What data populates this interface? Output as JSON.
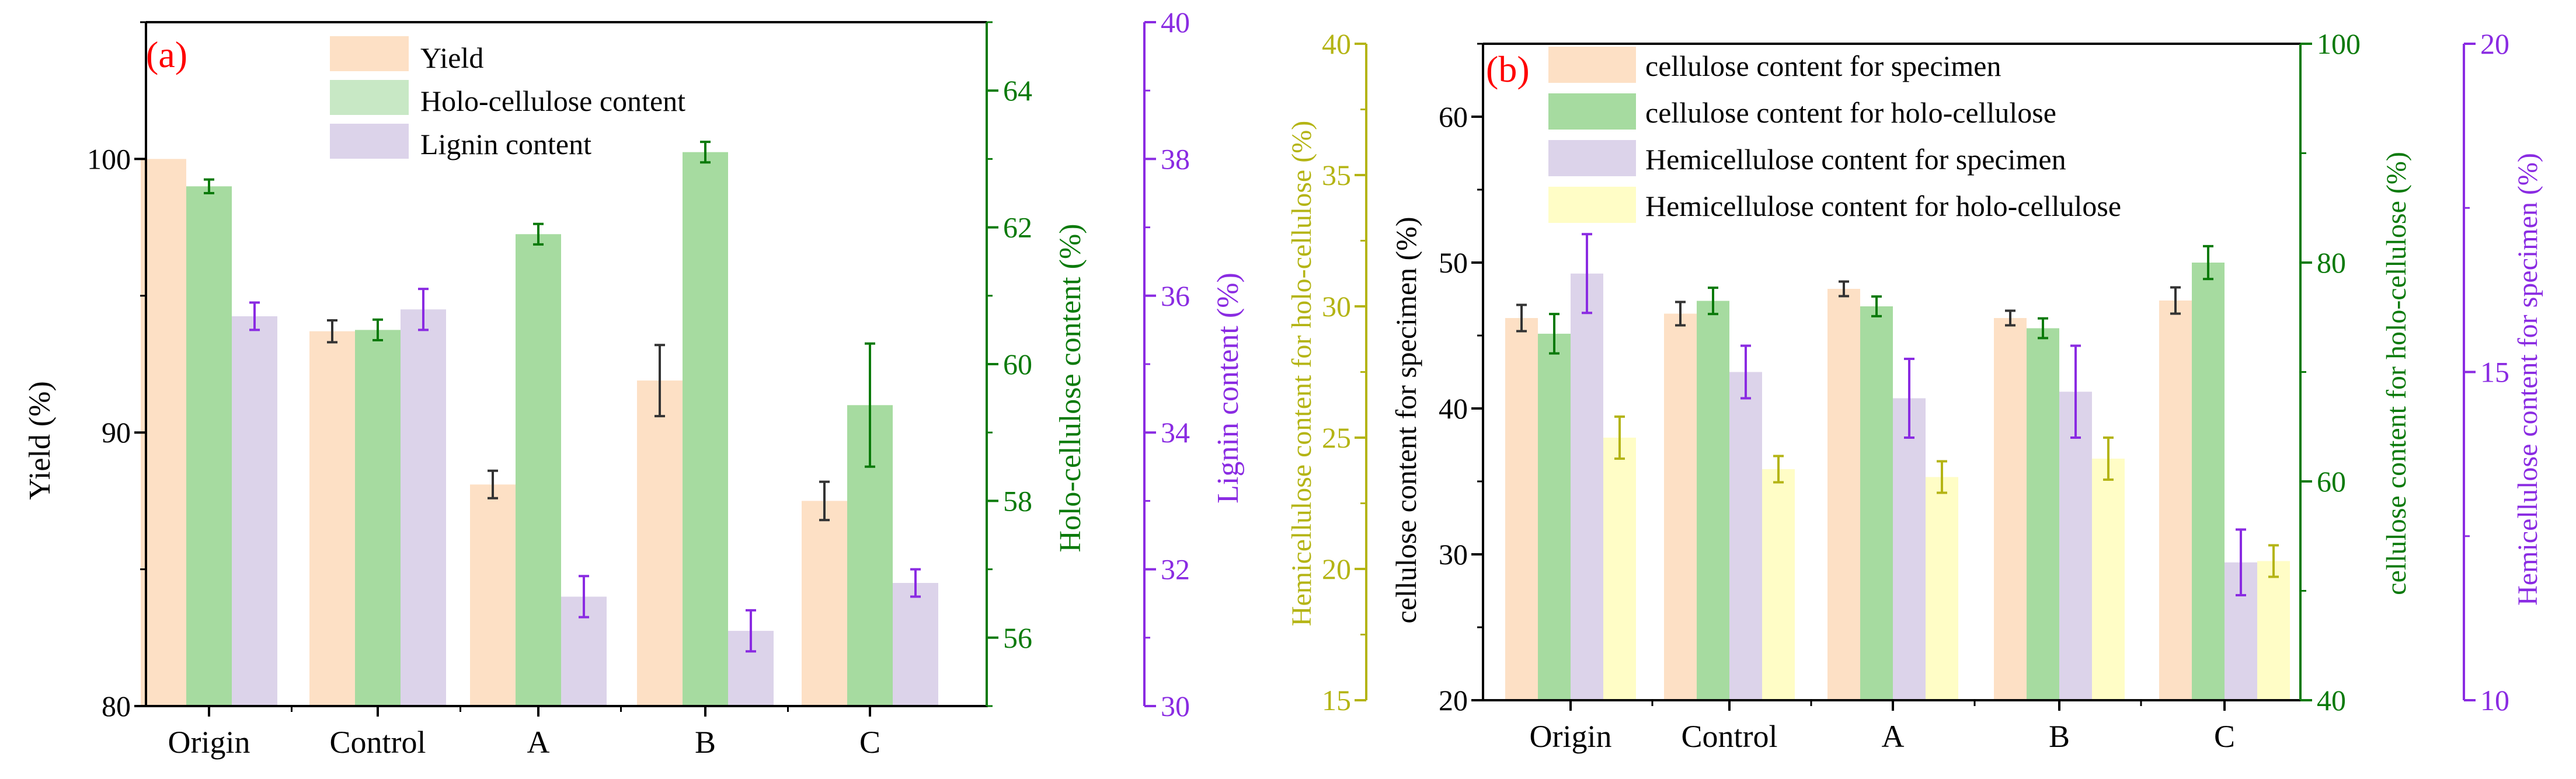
{
  "colors": {
    "yield": "#fde0c5",
    "holo": "#a6dba0",
    "lignin": "#dcd3ea",
    "cellulose_specimen": "#fde0c5",
    "cellulose_holo": "#a6dba0",
    "hemi_specimen": "#dcd3ea",
    "hemi_holo": "#fffdc6",
    "axis_black": "#000000",
    "axis_green": "#0a7a0a",
    "axis_purple": "#8a2be2",
    "axis_olive": "#b4b414",
    "panel_label": "#ff0000",
    "err_black": "#333333",
    "err_green": "#0a7a0a",
    "err_purple": "#8a2be2",
    "err_olive": "#b4b414"
  },
  "chart_data": [
    {
      "type": "bar",
      "panel_label": "(a)",
      "categories": [
        "Origin",
        "Control",
        "A",
        "B",
        "C"
      ],
      "axes": {
        "left": {
          "label": "Yield (%)",
          "range": [
            80,
            105
          ],
          "ticks": [
            80,
            90,
            100
          ]
        },
        "right1": {
          "label": "Holo-cellulose content (%)",
          "range": [
            55,
            65
          ],
          "ticks": [
            56,
            58,
            60,
            62,
            64
          ]
        },
        "right2": {
          "label": "Lignin content (%)",
          "range": [
            30,
            40
          ],
          "ticks": [
            30,
            32,
            34,
            36,
            38,
            40
          ]
        }
      },
      "series": [
        {
          "name": "Yield",
          "axis": "left",
          "color_key": "yield",
          "err_key": "err_black",
          "values": [
            100,
            93.7,
            88.1,
            91.9,
            87.5
          ],
          "errors": [
            null,
            0.4,
            0.5,
            1.3,
            0.7
          ]
        },
        {
          "name": "Holo-cellulose content",
          "axis": "right1",
          "color_key": "holo",
          "err_key": "err_green",
          "values": [
            62.6,
            60.5,
            61.9,
            63.1,
            59.4
          ],
          "errors": [
            0.1,
            0.15,
            0.15,
            0.15,
            0.9
          ]
        },
        {
          "name": "Lignin content",
          "axis": "right2",
          "color_key": "lignin",
          "err_key": "err_purple",
          "values": [
            35.7,
            35.8,
            31.6,
            31.1,
            31.8
          ],
          "errors": [
            0.2,
            0.3,
            0.3,
            0.3,
            0.2
          ]
        }
      ]
    },
    {
      "type": "bar",
      "panel_label": "(b)",
      "categories": [
        "Origin",
        "Control",
        "A",
        "B",
        "C"
      ],
      "axes": {
        "left_outer": {
          "label": "Hemicellulose content for holo-cellulose (%)",
          "range": [
            15,
            40
          ],
          "ticks": [
            15,
            20,
            25,
            30,
            35,
            40
          ]
        },
        "left": {
          "label": "cellulose content for specimen (%)",
          "range": [
            20,
            65
          ],
          "ticks": [
            20,
            30,
            40,
            50,
            60
          ]
        },
        "right1": {
          "label": "cellulose content for holo-cellulose (%)",
          "range": [
            40,
            100
          ],
          "ticks": [
            40,
            60,
            80,
            100
          ]
        },
        "right2": {
          "label": "Hemicellulose content for specimen (%)",
          "range": [
            10,
            20
          ],
          "ticks": [
            10,
            15,
            20
          ]
        }
      },
      "series": [
        {
          "name": "cellulose content for specimen",
          "axis": "left",
          "color_key": "cellulose_specimen",
          "err_key": "err_black",
          "values": [
            46.2,
            46.5,
            48.2,
            46.2,
            47.4
          ],
          "errors": [
            0.9,
            0.8,
            0.5,
            0.5,
            0.9
          ]
        },
        {
          "name": "cellulose content for holo-cellulose",
          "axis": "right1",
          "color_key": "cellulose_holo",
          "err_key": "err_green",
          "values": [
            73.5,
            76.5,
            76,
            74,
            80
          ],
          "errors": [
            1.8,
            1.2,
            0.9,
            0.9,
            1.5
          ]
        },
        {
          "name": "Hemicellulose content for specimen",
          "axis": "right2",
          "color_key": "hemi_specimen",
          "err_key": "err_purple",
          "values": [
            16.5,
            15,
            14.6,
            14.7,
            12.1
          ],
          "errors": [
            0.6,
            0.4,
            0.6,
            0.7,
            0.5
          ]
        },
        {
          "name": "Hemicellulose content for holo-cellulose",
          "axis": "left_outer",
          "color_key": "hemi_holo",
          "err_key": "err_olive",
          "values": [
            25,
            23.8,
            23.5,
            24.2,
            20.3
          ],
          "errors": [
            0.8,
            0.5,
            0.6,
            0.8,
            0.6
          ]
        }
      ]
    }
  ]
}
